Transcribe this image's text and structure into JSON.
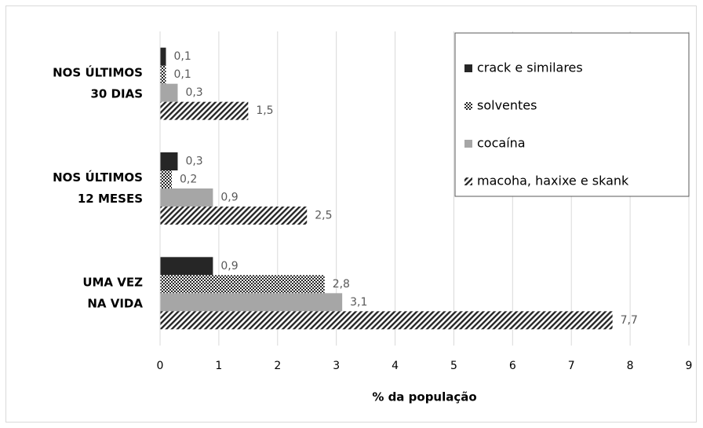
{
  "chart_data": {
    "type": "barh",
    "categories": [
      [
        "NOS ÚLTIMOS",
        "30 DIAS"
      ],
      [
        "NOS ÚLTIMOS",
        "12 MESES"
      ],
      [
        "UMA VEZ",
        "NA VIDA"
      ]
    ],
    "series": [
      {
        "name": "crack e similares",
        "color": "#262626",
        "pattern": "solid",
        "values": [
          0.1,
          0.3,
          0.9
        ],
        "value_labels": [
          "0,1",
          "0,3",
          "0,9"
        ]
      },
      {
        "name": "solventes",
        "color": "#262626",
        "pattern": "dots",
        "values": [
          0.1,
          0.2,
          2.8
        ],
        "value_labels": [
          "0,1",
          "0,2",
          "2,8"
        ]
      },
      {
        "name": "cocaína",
        "color": "#a6a6a6",
        "pattern": "solid",
        "values": [
          0.3,
          0.9,
          3.1
        ],
        "value_labels": [
          "0,3",
          "0,9",
          "3,1"
        ]
      },
      {
        "name": "macoha, haxixe e skank",
        "color": "#262626",
        "pattern": "hatch",
        "values": [
          1.5,
          2.5,
          7.7
        ],
        "value_labels": [
          "1,5",
          "2,5",
          "7,7"
        ]
      }
    ],
    "xlabel": "% da população",
    "xlim": [
      0,
      9
    ],
    "xticks": [
      0,
      1,
      2,
      3,
      4,
      5,
      6,
      7,
      8,
      9
    ],
    "grid": true,
    "legend": "upper right"
  }
}
